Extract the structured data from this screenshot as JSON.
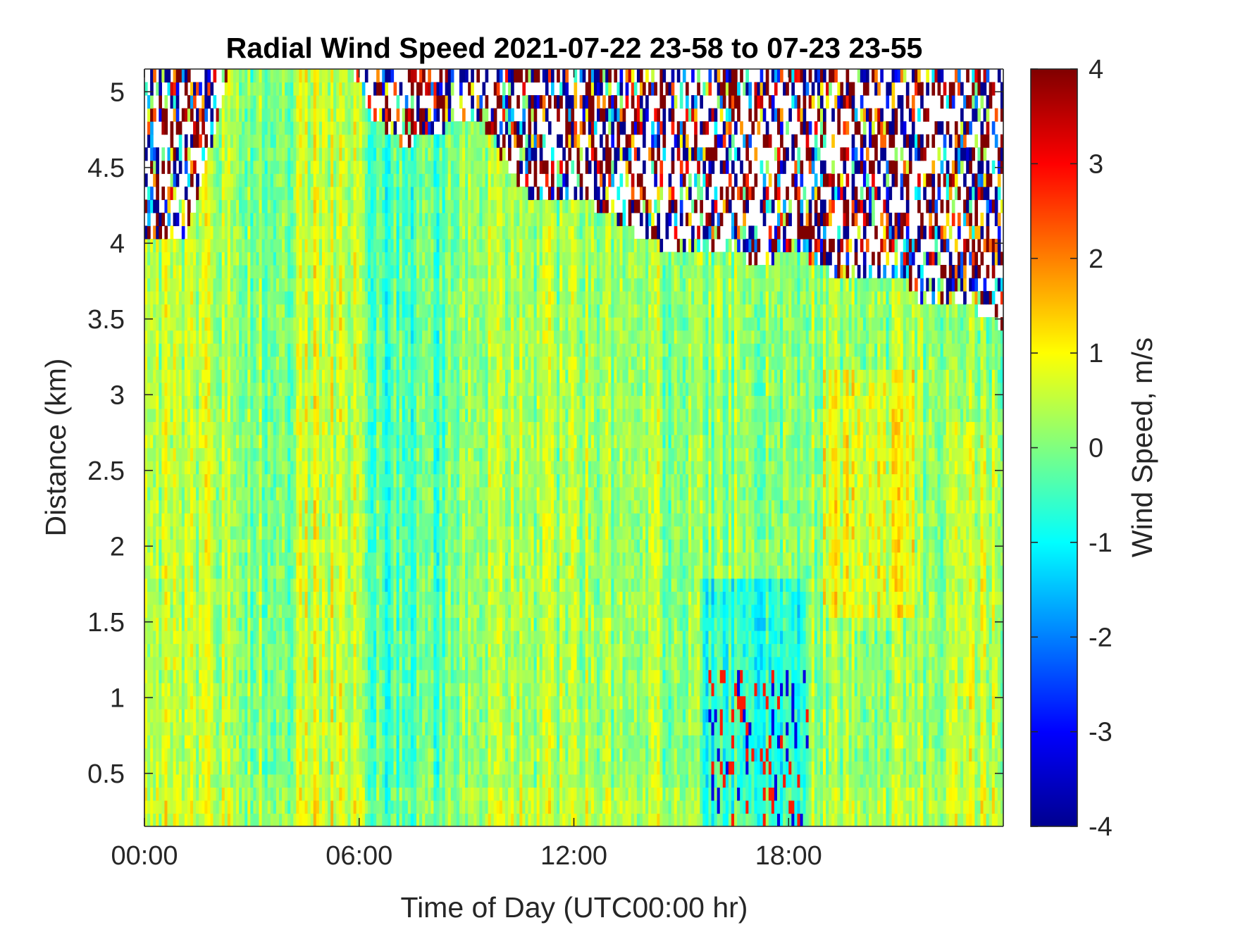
{
  "chart_data": {
    "type": "heatmap",
    "title": "Radial Wind Speed 2021-07-22 23-58 to 07-23 23-55",
    "xlabel": "Time of Day (UTC00:00 hr)",
    "ylabel": "Distance (km)",
    "xlim": [
      0,
      24
    ],
    "ylim": [
      0.15,
      5.15
    ],
    "x_ticks": [
      {
        "value": 0,
        "label": "00:00"
      },
      {
        "value": 6,
        "label": "06:00"
      },
      {
        "value": 12,
        "label": "12:00"
      },
      {
        "value": 18,
        "label": "18:00"
      }
    ],
    "y_ticks": [
      {
        "value": 0.5,
        "label": "0.5"
      },
      {
        "value": 1,
        "label": "1"
      },
      {
        "value": 1.5,
        "label": "1.5"
      },
      {
        "value": 2,
        "label": "2"
      },
      {
        "value": 2.5,
        "label": "2.5"
      },
      {
        "value": 3,
        "label": "3"
      },
      {
        "value": 3.5,
        "label": "3.5"
      },
      {
        "value": 4,
        "label": "4"
      },
      {
        "value": 4.5,
        "label": "4.5"
      },
      {
        "value": 5,
        "label": "5"
      }
    ],
    "colorbar": {
      "label": "Wind Speed, m/s",
      "range": [
        -4,
        4
      ],
      "colormap": "jet",
      "ticks": [
        {
          "value": 4,
          "label": "4"
        },
        {
          "value": 3,
          "label": "3"
        },
        {
          "value": 2,
          "label": "2"
        },
        {
          "value": 1,
          "label": "1"
        },
        {
          "value": 0,
          "label": "0"
        },
        {
          "value": -1,
          "label": "-1"
        },
        {
          "value": -2,
          "label": "-2"
        },
        {
          "value": -3,
          "label": "-3"
        },
        {
          "value": -4,
          "label": "-4"
        }
      ]
    },
    "signal_top_km": [
      [
        0.0,
        4.05
      ],
      [
        0.5,
        4.05
      ],
      [
        1.2,
        4.05
      ],
      [
        2.4,
        5.15
      ],
      [
        3.6,
        5.15
      ],
      [
        4.5,
        5.15
      ],
      [
        5.8,
        5.15
      ],
      [
        6.3,
        4.85
      ],
      [
        7.2,
        4.65
      ],
      [
        8.3,
        4.75
      ],
      [
        9.3,
        4.85
      ],
      [
        10.3,
        4.45
      ],
      [
        11.0,
        4.25
      ],
      [
        12.5,
        4.25
      ],
      [
        13.3,
        4.15
      ],
      [
        14.0,
        4.0
      ],
      [
        15.5,
        3.95
      ],
      [
        16.8,
        3.9
      ],
      [
        17.6,
        3.9
      ],
      [
        18.2,
        3.95
      ],
      [
        19.2,
        3.8
      ],
      [
        20.3,
        3.75
      ],
      [
        21.3,
        3.75
      ],
      [
        21.9,
        3.55
      ],
      [
        22.6,
        3.65
      ],
      [
        23.3,
        3.55
      ],
      [
        24.0,
        3.45
      ]
    ]
  }
}
